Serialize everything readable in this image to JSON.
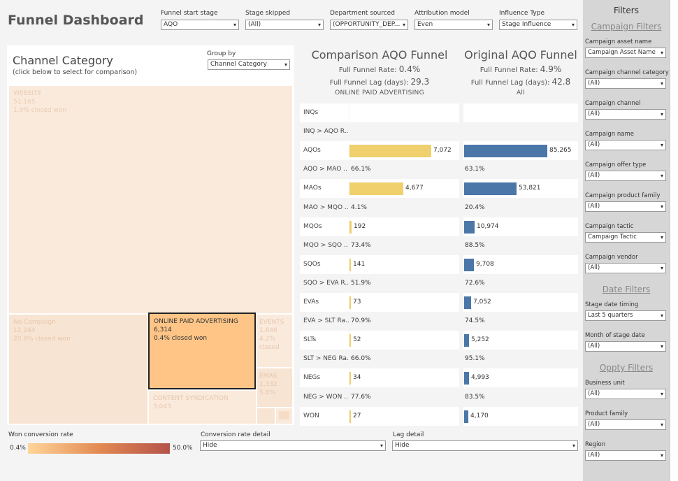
{
  "title": "Funnel Dashboard",
  "top_filters": [
    {
      "label": "Funnel start stage",
      "value": "AQO"
    },
    {
      "label": "Stage skipped",
      "value": "(All)"
    },
    {
      "label": "Department sourced",
      "value": "(OPPORTUNITY_DEP..."
    },
    {
      "label": "Attribution model",
      "value": "Even"
    },
    {
      "label": "Influence Type",
      "value": "Stage Influence"
    }
  ],
  "treemap": {
    "title": "Channel Category",
    "subtitle": "(click below to select for comparison)",
    "group_by_label": "Group by",
    "group_by_value": "Channel Category",
    "tiles": [
      {
        "name": "WEBSITE",
        "count": "51,165",
        "rate": "1.9% closed won",
        "color": "#faeadc"
      },
      {
        "name": "No Campaign",
        "count": "12,244",
        "rate": "20.9% closed won",
        "color": "#f8e4d2"
      },
      {
        "name": "ONLINE PAID ADVERTISING",
        "count": "6,314",
        "rate": "0.4% closed won",
        "color": "#fec587"
      },
      {
        "name": "EVENTS",
        "count": "1,646",
        "rate": "4.2%",
        "rate2": "closed",
        "color": "#faeadc"
      },
      {
        "name": "EMAIL",
        "count": "1,332",
        "rate": "5.8%",
        "color": "#f8e4d2"
      },
      {
        "name": "CONTENT SYNDICATION",
        "count": "3,043",
        "color": "#faeadc"
      }
    ]
  },
  "comparison": {
    "title": "Comparison AQO Funnel",
    "rate_label": "Full Funnel Rate:",
    "rate_value": "0.4%",
    "lag_label": "Full Funnel Lag (days):",
    "lag_value": "29.3",
    "category": "ONLINE PAID ADVERTISING"
  },
  "original": {
    "title": "Original AQO Funnel",
    "rate_label": "Full Funnel Rate:",
    "rate_value": "4.9%",
    "lag_label": "Full Funnel Lag (days):",
    "lag_value": "42.8",
    "category": "All"
  },
  "funnel_rows": [
    {
      "label": "INQs",
      "a": "",
      "b": "",
      "a_frac": 0,
      "b_frac": 0,
      "kind": "bar"
    },
    {
      "label": "INQ > AQO R..",
      "a": "",
      "b": "",
      "kind": "rate"
    },
    {
      "label": "AQOs",
      "a": "7,072",
      "b": "85,265",
      "a_frac": 1.0,
      "b_frac": 1.0,
      "kind": "bar"
    },
    {
      "label": "AQO > MAO ..",
      "a": "66.1%",
      "b": "63.1%",
      "kind": "rate"
    },
    {
      "label": "MAOs",
      "a": "4,677",
      "b": "53,821",
      "a_frac": 0.661,
      "b_frac": 0.631,
      "kind": "bar"
    },
    {
      "label": "MAO > MQO ..",
      "a": "4.1%",
      "b": "20.4%",
      "kind": "rate"
    },
    {
      "label": "MQOs",
      "a": "192",
      "b": "10,974",
      "a_frac": 0.027,
      "b_frac": 0.129,
      "kind": "bar"
    },
    {
      "label": "MQO > SQO ..",
      "a": "73.4%",
      "b": "88.5%",
      "kind": "rate"
    },
    {
      "label": "SQOs",
      "a": "141",
      "b": "9,708",
      "a_frac": 0.02,
      "b_frac": 0.114,
      "kind": "bar"
    },
    {
      "label": "SQO > EVA R..",
      "a": "51.9%",
      "b": "72.6%",
      "kind": "rate"
    },
    {
      "label": "EVAs",
      "a": "73",
      "b": "7,052",
      "a_frac": 0.01,
      "b_frac": 0.083,
      "kind": "bar"
    },
    {
      "label": "EVA > SLT Ra..",
      "a": "70.9%",
      "b": "74.5%",
      "kind": "rate"
    },
    {
      "label": "SLTs",
      "a": "52",
      "b": "5,252",
      "a_frac": 0.007,
      "b_frac": 0.062,
      "kind": "bar"
    },
    {
      "label": "SLT > NEG Ra..",
      "a": "66.0%",
      "b": "95.1%",
      "kind": "rate"
    },
    {
      "label": "NEGs",
      "a": "34",
      "b": "4,993",
      "a_frac": 0.005,
      "b_frac": 0.059,
      "kind": "bar"
    },
    {
      "label": "NEG > WON ..",
      "a": "77.6%",
      "b": "83.5%",
      "kind": "rate"
    },
    {
      "label": "WON",
      "a": "27",
      "b": "4,170",
      "a_frac": 0.004,
      "b_frac": 0.049,
      "kind": "bar"
    }
  ],
  "legend": {
    "label": "Won conversion rate",
    "min": "0.4%",
    "max": "50.0%"
  },
  "conversion_detail": {
    "label": "Conversion rate detail",
    "value": "Hide"
  },
  "lag_detail": {
    "label": "Lag detail",
    "value": "Hide"
  },
  "filters_panel": {
    "title": "Filters",
    "sections": {
      "campaign": "Campaign Filters",
      "date": "Date Filters",
      "oppty": "Oppty Filters"
    },
    "campaign": [
      {
        "label": "Campaign asset name",
        "value": "Campaign Asset Name"
      },
      {
        "label": "Campaign channel category",
        "value": "(All)"
      },
      {
        "label": "Campaign channel",
        "value": "(All)"
      },
      {
        "label": "Campaign name",
        "value": "(All)"
      },
      {
        "label": "Campaign offer type",
        "value": "(All)"
      },
      {
        "label": "Campaign product family",
        "value": "(All)"
      },
      {
        "label": "Campaign tactic",
        "value": "Campaign Tactic"
      },
      {
        "label": "Campaign vendor",
        "value": "(All)"
      }
    ],
    "date": [
      {
        "label": "Stage date timing",
        "value": "Last 5 quarters"
      },
      {
        "label": "Month of stage date",
        "value": "(All)"
      }
    ],
    "oppty": [
      {
        "label": "Business unit",
        "value": "(All)"
      },
      {
        "label": "Product family",
        "value": "(All)"
      },
      {
        "label": "Region",
        "value": "(All)"
      }
    ]
  },
  "colors": {
    "bar_comparison": "#f0d06c",
    "bar_original": "#4a76a8",
    "selected_tile": "#fec587"
  }
}
